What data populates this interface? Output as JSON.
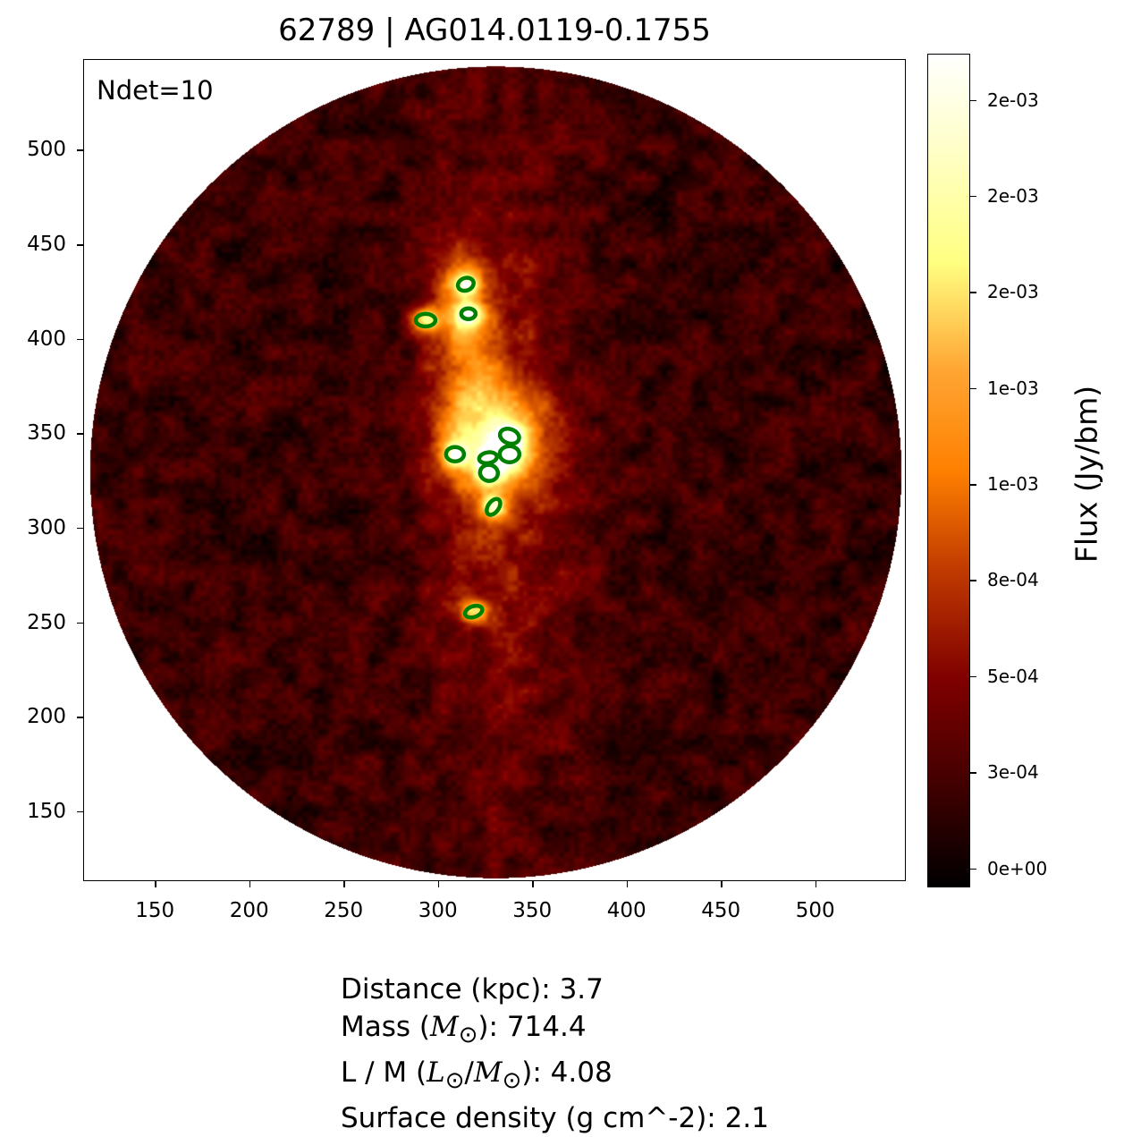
{
  "title": "62789 | AG014.0119-0.1755",
  "annotation": "Ndet=10",
  "chart_data": {
    "type": "heatmap",
    "title": "62789 | AG014.0119-0.1755",
    "xlim": [
      112,
      548
    ],
    "ylim": [
      113,
      548
    ],
    "x_ticks": [
      150,
      200,
      250,
      300,
      350,
      400,
      450,
      500
    ],
    "y_ticks": [
      150,
      200,
      250,
      300,
      350,
      400,
      450,
      500
    ],
    "x_tick_labels": [
      "150",
      "200",
      "250",
      "300",
      "350",
      "400",
      "450",
      "500"
    ],
    "y_tick_labels": [
      "150",
      "200",
      "250",
      "300",
      "350",
      "400",
      "450",
      "500"
    ],
    "field_of_view": {
      "shape": "circle",
      "center": [
        330,
        330
      ],
      "radius": 215
    },
    "colormap": "afmhot",
    "colorbar": {
      "label": "Flux (Jy/bm)",
      "range": [
        -5e-05,
        0.00212
      ],
      "ticks": [
        0,
        0.00025,
        0.0005,
        0.00075,
        0.001,
        0.00125,
        0.0015,
        0.00175,
        0.002
      ],
      "tick_labels": [
        "0e+00",
        "3e-04",
        "5e-04",
        "8e-04",
        "1e-03",
        "1e-03",
        "2e-03",
        "2e-03",
        "2e-03"
      ]
    },
    "detections": [
      {
        "x": 314.3,
        "y": 429.3
      },
      {
        "x": 315.7,
        "y": 413.7
      },
      {
        "x": 293.0,
        "y": 410.3
      },
      {
        "x": 337.5,
        "y": 348.9
      },
      {
        "x": 308.6,
        "y": 339.4
      },
      {
        "x": 326.1,
        "y": 337.5
      },
      {
        "x": 337.5,
        "y": 339.4
      },
      {
        "x": 326.6,
        "y": 329.5
      },
      {
        "x": 329.0,
        "y": 311.5
      },
      {
        "x": 318.5,
        "y": 256.1
      }
    ],
    "detection_color": "#008000"
  },
  "info": {
    "distance_label": "Distance (kpc): ",
    "distance": "3.7",
    "mass_label_pre": "Mass (",
    "mass_symbol": "M",
    "sun": "⊙",
    "mass_label_post": "): ",
    "mass": "714.4",
    "lm_label_pre": "L / M (",
    "lm_L": "L",
    "lm_slash": "/",
    "lm_M": "M",
    "lm_label_post": "): ",
    "lm": "4.08",
    "sd_label": "Surface density (g cm^-2): ",
    "sd": "2.1"
  }
}
